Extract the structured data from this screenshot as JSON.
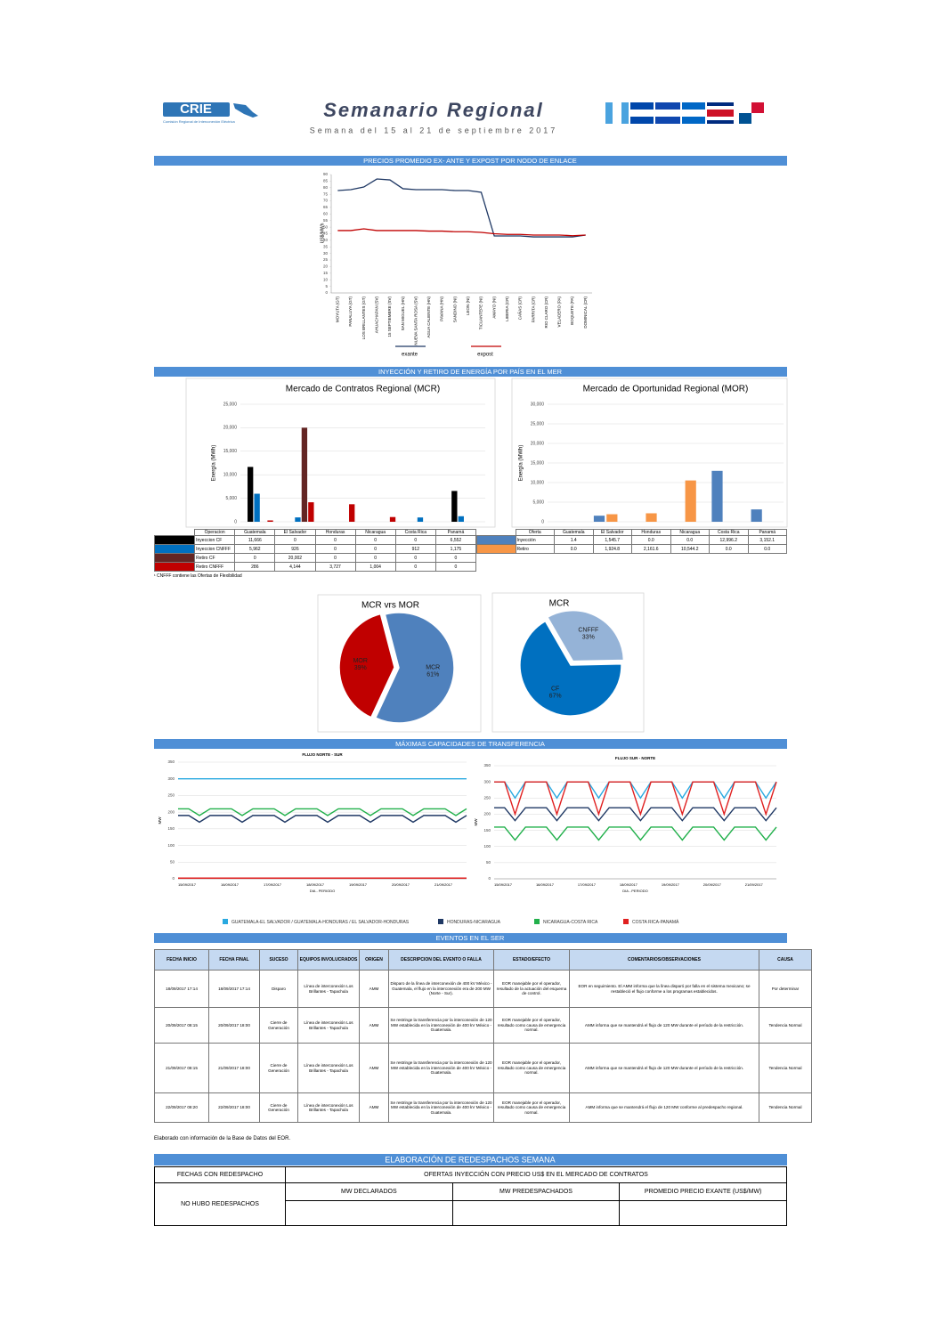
{
  "header": {
    "logo": "CRIE",
    "logo_subtitle": "Comisión Regional de Interconexión Eléctrica",
    "title": "Semanario Regional",
    "subtitle": "Semana del 15 al 21 de septiembre 2017"
  },
  "sections": [
    "PRECIOS PROMEDIO EX- ANTE Y EXPOST POR NODO DE ENLACE",
    "INYECCIÓN Y RETIRO DE ENERGÍA POR PAÍS EN EL MER",
    "MÁXIMAS CAPACIDADES DE TRANSFERENCIA",
    "EVENTOS EN EL SER",
    "ELABORACIÓN DE REDESPACHOS SEMANA"
  ],
  "chart_data": [
    {
      "type": "line",
      "y_label": "US$/MWh",
      "categories": [
        "MOYUTA (GT)",
        "PANALUYA (GT)",
        "LOS BRILLANTES (GT)",
        "AHUACHAPAN (SV)",
        "15 SEPTIEMBRE (SV)",
        "SAN MIGUEL (HN)",
        "NUEVA SANTA ROSA (SV)",
        "AGUA CALIENTE (HN)",
        "PAVANA (HN)",
        "SANDINO (NI)",
        "LEON (NI)",
        "TICUANTEPE (NI)",
        "AMAYO (NI)",
        "LIBERIA (CR)",
        "CAÑAS (CR)",
        "PARRITA (CR)",
        "RIO CLARO (CR)",
        "VELADERO (PA)",
        "BOQUETE (PA)",
        "DOMINICAL (CR)"
      ],
      "series": [
        {
          "name": "exante",
          "color": "#1f3864",
          "values": [
            77.8,
            78.5,
            80.5,
            86.6,
            85.9,
            79.2,
            78.5,
            78.5,
            78.5,
            77.8,
            77.8,
            76.5,
            43.3,
            43.3,
            43.3,
            42.6,
            42.6,
            42.6,
            42.6,
            44
          ]
        },
        {
          "name": "expost",
          "color": "#c00000",
          "values": [
            47.4,
            47.4,
            48.7,
            47.4,
            47.4,
            47.4,
            47.4,
            47,
            47,
            46.5,
            46.5,
            46,
            45,
            44.5,
            44.5,
            44,
            44,
            44,
            43.5,
            44
          ]
        }
      ],
      "ylim": [
        0,
        90
      ],
      "yticks": [
        0,
        5,
        10,
        15,
        20,
        25,
        30,
        35,
        40,
        45,
        50,
        55,
        60,
        65,
        70,
        75,
        80,
        85,
        90
      ]
    },
    {
      "type": "bar",
      "title": "Mercado de Contratos Regional (MCR)",
      "y_label": "Energía (MWh)",
      "table_header": "Operacion",
      "categories": [
        "Guatemala",
        "El Salvador",
        "Honduras",
        "Nicaragua",
        "Costa Rica",
        "Panamá"
      ],
      "series": [
        {
          "name": "Inyeccion CF",
          "color": "#000000",
          "values": [
            11666,
            0,
            0,
            0,
            0,
            6552
          ],
          "value_labels": [
            "11,666",
            "0",
            "0",
            "0",
            "0",
            "6,552"
          ]
        },
        {
          "name": "Inyeccion CNFFF",
          "color": "#0070c0",
          "values": [
            5962,
            926,
            0,
            0,
            912,
            1175
          ],
          "value_labels": [
            "5,962",
            "926",
            "0",
            "0",
            "912",
            "1,175"
          ]
        },
        {
          "name": "Retiro CF",
          "color": "#632523",
          "values": [
            0,
            20002,
            0,
            0,
            0,
            0
          ],
          "value_labels": [
            "0",
            "20,002",
            "0",
            "0",
            "0",
            "0"
          ]
        },
        {
          "name": "Retiro CNFFF",
          "color": "#c00000",
          "values": [
            286,
            4144,
            3727,
            1004,
            0,
            0
          ],
          "value_labels": [
            "286",
            "4,144",
            "3,727",
            "1,004",
            "0",
            "0"
          ]
        }
      ],
      "ylim": [
        0,
        25000
      ],
      "yticks": [
        0,
        {
          "value": 5000,
          "label": "5,000"
        },
        {
          "value": 10000,
          "label": "10,000"
        },
        {
          "value": 15000,
          "label": "15,000"
        },
        {
          "value": 20000,
          "label": "20,000"
        },
        {
          "value": 25000,
          "label": "25,000"
        }
      ]
    },
    {
      "type": "bar",
      "title": "Mercado de Oportunidad Regional (MOR)",
      "y_label": "Energía (MWh)",
      "table_header": "Oferta",
      "categories": [
        "Guatemala",
        "El Salvador",
        "Honduras",
        "Nicaragua",
        "Costa Rica",
        "Panamá"
      ],
      "series": [
        {
          "name": "Inyección",
          "color": "#4f81bd",
          "values": [
            1.4,
            1545.7,
            0,
            0,
            12996.2,
            3152.1
          ],
          "value_labels": [
            "1.4",
            "1,545.7",
            "0.0",
            "0.0",
            "12,996.2",
            "3,152.1"
          ]
        },
        {
          "name": "Retiro",
          "color": "#f79646",
          "values": [
            0,
            1924.8,
            2161.6,
            10544.2,
            0,
            0
          ],
          "value_labels": [
            "0.0",
            "1,924.8",
            "2,161.6",
            "10,544.2",
            "0.0",
            "0.0"
          ]
        }
      ],
      "ylim": [
        0,
        30000
      ],
      "yticks": [
        0,
        {
          "value": 5000,
          "label": "5,000"
        },
        {
          "value": 10000,
          "label": "10,000"
        },
        {
          "value": 15000,
          "label": "15,000"
        },
        {
          "value": 20000,
          "label": "20,000"
        },
        {
          "value": 25000,
          "label": "25,000"
        },
        {
          "value": 30000,
          "label": "30,000"
        }
      ]
    },
    {
      "type": "pie",
      "title": "MCR vrs MOR",
      "categories": [
        "MOR",
        "MCR"
      ],
      "values": [
        39,
        61
      ],
      "value_labels": [
        "39%",
        "61%"
      ],
      "colors": [
        "#c00000",
        "#4f81bd"
      ]
    },
    {
      "type": "pie",
      "title": "MCR",
      "categories": [
        "CNFFF",
        "CF"
      ],
      "values": [
        33,
        67
      ],
      "value_labels": [
        "33%",
        "67%"
      ],
      "colors": [
        "#95b3d7",
        "#0070c0"
      ]
    },
    {
      "type": "flow",
      "title": "FLUJO NORTE - SUR",
      "y_label": "MW",
      "x_label": "DIA - PERIODO",
      "categories": [
        "15/09/2017",
        null,
        null,
        null,
        "16/09/2017",
        null,
        null,
        null,
        "17/09/2017",
        null,
        null,
        null,
        "18/09/2017",
        null,
        null,
        null,
        "19/09/2017",
        null,
        null,
        null,
        "20/09/2017",
        null,
        null,
        null,
        "21/09/2017",
        null,
        null,
        null
      ],
      "series": [
        {
          "name": "GUATEMALA-EL SALVADOR / GUATEMALA-HONDURAS / EL SALVADOR-HONDURAS",
          "color": "#29a9e0",
          "values": [
            300,
            300,
            300,
            300,
            300,
            300,
            300,
            300,
            300,
            300,
            300,
            300,
            300,
            300,
            300,
            300,
            300,
            300,
            300,
            300,
            300,
            300,
            300,
            300,
            300,
            300,
            300,
            300
          ]
        },
        {
          "name": "HONDURAS-NICARAGUA",
          "color": "#1f3864",
          "values": [
            190,
            190,
            170,
            190,
            190,
            190,
            170,
            190,
            190,
            190,
            170,
            190,
            190,
            190,
            170,
            190,
            190,
            190,
            170,
            190,
            190,
            190,
            170,
            190,
            190,
            190,
            170,
            190
          ]
        },
        {
          "name": "NICARAGUA-COSTA RICA",
          "color": "#21b04b",
          "values": [
            210,
            210,
            190,
            210,
            210,
            210,
            190,
            210,
            210,
            210,
            190,
            210,
            210,
            210,
            190,
            210,
            210,
            210,
            190,
            210,
            210,
            210,
            190,
            210,
            210,
            210,
            190,
            210
          ]
        },
        {
          "name": "COSTA RICA-PANAMÁ",
          "color": "#e02020",
          "values": [
            2,
            2,
            2,
            2,
            2,
            2,
            2,
            2,
            2,
            2,
            2,
            2,
            2,
            2,
            2,
            2,
            2,
            2,
            2,
            2,
            2,
            2,
            2,
            2,
            2,
            2,
            2,
            2
          ]
        }
      ],
      "ylim": [
        0,
        350
      ],
      "yticks": [
        0,
        50,
        100,
        150,
        200,
        250,
        300,
        350
      ]
    },
    {
      "type": "flow",
      "title": "FLUJO SUR - NORTE",
      "y_label": "MW",
      "x_label": "DIA - PERIODO",
      "categories": [
        "15/09/2017",
        null,
        null,
        null,
        "16/09/2017",
        null,
        null,
        null,
        "17/09/2017",
        null,
        null,
        null,
        "18/09/2017",
        null,
        null,
        null,
        "19/09/2017",
        null,
        null,
        null,
        "20/09/2017",
        null,
        null,
        null,
        "21/09/2017",
        null,
        null,
        null
      ],
      "series": [
        {
          "color": "#29a9e0",
          "values": [
            300,
            300,
            250,
            300,
            300,
            300,
            250,
            300,
            300,
            300,
            250,
            300,
            300,
            300,
            250,
            300,
            300,
            300,
            250,
            300,
            300,
            300,
            250,
            300,
            300,
            300,
            250,
            300
          ]
        },
        {
          "color": "#1f3864",
          "values": [
            220,
            220,
            180,
            220,
            220,
            220,
            180,
            220,
            220,
            220,
            180,
            220,
            220,
            220,
            180,
            220,
            220,
            220,
            180,
            220,
            220,
            220,
            180,
            220,
            220,
            220,
            180,
            220
          ]
        },
        {
          "color": "#21b04b",
          "values": [
            160,
            160,
            120,
            160,
            160,
            160,
            120,
            160,
            160,
            160,
            120,
            160,
            160,
            160,
            120,
            160,
            160,
            160,
            120,
            160,
            160,
            160,
            120,
            160,
            160,
            160,
            120,
            160
          ]
        },
        {
          "color": "#e02020",
          "values": [
            300,
            300,
            200,
            300,
            300,
            300,
            200,
            300,
            300,
            300,
            200,
            300,
            300,
            300,
            200,
            300,
            300,
            300,
            200,
            300,
            300,
            300,
            200,
            300,
            300,
            300,
            200,
            300
          ]
        }
      ],
      "ylim": [
        0,
        350
      ],
      "yticks": [
        0,
        50,
        100,
        150,
        200,
        250,
        300,
        350
      ]
    }
  ],
  "mcr_footnote": "¹ CNFFF contiene las Ofertas de Flexibilidad",
  "events": {
    "headers": [
      "FECHA INICIO",
      "FECHA FINAL",
      "SUCESO",
      "EQUIPOS INVOLUCRADOS",
      "ORIGEN",
      "DESCRIPCION DEL EVENTO O FALLA",
      "ESTADO/EFECTO",
      "COMENTARIOS/OBSERVACIONES",
      "CAUSA"
    ],
    "rows": [
      [
        "18/09/2017 17:14",
        "18/09/2017 17:14",
        "Disparo",
        "Línea de interconexión Los Brillantes - Tapachula",
        "AMM",
        "Disparo de la línea de interconexión de 400 kV México - Guatemala, el flujo en la interconexión era de 200 MW (Norte - Sur).",
        "EOR manejable por el operador, resultado de la actuación del esquema de control.",
        "EOR en seguimiento. El AMM informa que la línea disparó por falla en el sistema mexicano; se restableció el flujo conforme a los programas establecidos.",
        "Por determinar"
      ],
      [
        "20/09/2017 08:15",
        "20/09/2017 18:00",
        "Cierre de Generación",
        "Línea de interconexión Los Brillantes - Tapachula",
        "AMM",
        "Se restringe la transferencia por la interconexión de 120 MW establecida en la interconexión de 400 kV México - Guatemala.",
        "EOR manejable por el operador, resultado como causa de emergencia normal.",
        "AMM informa que se mantendrá el flujo de 120 MW durante el período de la restricción.",
        "Tendencia Normal"
      ],
      [
        "21/09/2017 08:15",
        "21/09/2017 18:00",
        "Cierre de Generación",
        "Línea de interconexión Los Brillantes - Tapachula",
        "AMM",
        "Se restringe la transferencia por la interconexión de 120 MW establecida en la interconexión de 400 kV México - Guatemala.",
        "EOR manejable por el operador, resultado como causa de emergencia normal.",
        "AMM informa que se mantendrá el flujo de 120 MW durante el período de la restricción.",
        "Tendencia Normal"
      ],
      [
        "22/09/2017 08:20",
        "22/09/2017 18:00",
        "Cierre de Generación",
        "Línea de interconexión Los Brillantes - Tapachula",
        "AMM",
        "Se restringe la transferencia por la interconexión de 120 MW establecida en la interconexión de 400 kV México - Guatemala.",
        "EOR manejable por el operador, resultado como causa de emergencia normal.",
        "AMM informa que se mantendrá el flujo de 120 MW conforme al predespacho regional.",
        "Tendencia Normal"
      ]
    ]
  },
  "source_note": "Elaborado con información de la Base de Datos del EOR.",
  "redespachos": {
    "dates_header": "FECHAS CON REDESPACHO",
    "group_header": "OFERTAS INYECCIÓN CON PRECIO US$ EN EL MERCADO DE CONTRATOS",
    "columns": [
      "MW DECLARADOS",
      "MW PREDESPACHADOS",
      "PROMEDIO PRECIO EXANTE (US$/MW)"
    ],
    "value": "NO HUBO REDESPACHOS"
  }
}
